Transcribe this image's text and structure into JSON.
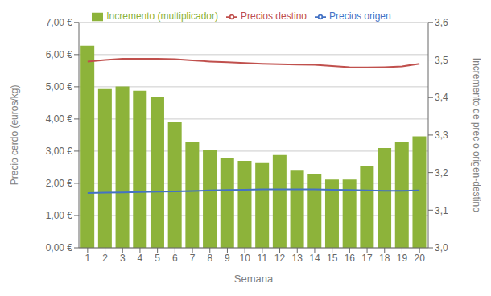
{
  "chart_data": {
    "type": "bar",
    "xlabel": "Semana",
    "ylabel": "Precio cerdo (euros/kg)",
    "y2label": "Incremento de precio origen-destino",
    "categories": [
      "1",
      "2",
      "3",
      "4",
      "5",
      "6",
      "7",
      "8",
      "9",
      "10",
      "11",
      "12",
      "13",
      "14",
      "15",
      "16",
      "17",
      "18",
      "19",
      "20"
    ],
    "series": [
      {
        "name": "Incremento (multiplicador)",
        "type": "bar",
        "color": "#8DB33A",
        "values": [
          6.28,
          4.93,
          5.01,
          4.88,
          4.68,
          3.9,
          3.3,
          3.05,
          2.8,
          2.7,
          2.63,
          2.88,
          2.42,
          2.3,
          2.12,
          2.12,
          2.55,
          3.1,
          3.27,
          3.46
        ]
      },
      {
        "name": "Precios origen",
        "type": "line",
        "color": "#4472C4",
        "values": [
          1.7,
          1.71,
          1.72,
          1.73,
          1.74,
          1.75,
          1.76,
          1.78,
          1.79,
          1.8,
          1.81,
          1.81,
          1.81,
          1.81,
          1.8,
          1.79,
          1.78,
          1.77,
          1.77,
          1.78
        ]
      },
      {
        "name": "Precios destino",
        "type": "line",
        "color": "#C0504D",
        "axis": "y2",
        "values": [
          3.496,
          3.5,
          3.503,
          3.503,
          3.503,
          3.502,
          3.499,
          3.496,
          3.494,
          3.492,
          3.49,
          3.489,
          3.488,
          3.487,
          3.484,
          3.481,
          3.48,
          3.481,
          3.483,
          3.49
        ]
      }
    ],
    "ylim": [
      0,
      7.0
    ],
    "yticks": [
      {
        "value": 0.0,
        "label": "0,00 €"
      },
      {
        "value": 1.0,
        "label": "1,00 €"
      },
      {
        "value": 2.0,
        "label": "2,00 €"
      },
      {
        "value": 3.0,
        "label": "3,00 €"
      },
      {
        "value": 4.0,
        "label": "4,00 €"
      },
      {
        "value": 5.0,
        "label": "5,00 €"
      },
      {
        "value": 6.0,
        "label": "6,00 €"
      },
      {
        "value": 7.0,
        "label": "7,00 €"
      }
    ],
    "y2lim": [
      3.0,
      3.6
    ],
    "y2ticks": [
      {
        "value": 3.0,
        "label": "3,0"
      },
      {
        "value": 3.1,
        "label": "3,1"
      },
      {
        "value": 3.2,
        "label": "3,2"
      },
      {
        "value": 3.3,
        "label": "3,3"
      },
      {
        "value": 3.4,
        "label": "3,4"
      },
      {
        "value": 3.5,
        "label": "3,5"
      },
      {
        "value": 3.6,
        "label": "3,6"
      }
    ],
    "grid": true,
    "legend": "top"
  }
}
